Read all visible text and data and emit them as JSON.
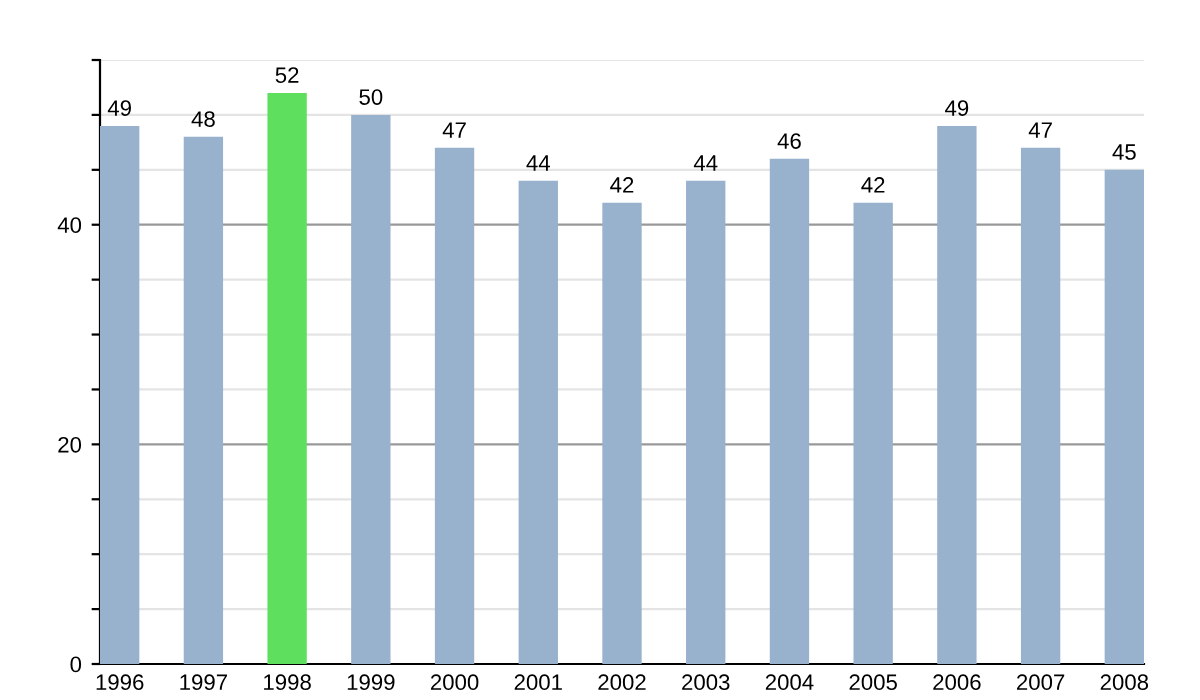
{
  "chart_data": {
    "type": "bar",
    "categories": [
      "1996",
      "1997",
      "1998",
      "1999",
      "2000",
      "2001",
      "2002",
      "2003",
      "2004",
      "2005",
      "2006",
      "2007",
      "2008"
    ],
    "values": [
      49,
      48,
      52,
      50,
      47,
      44,
      42,
      44,
      46,
      42,
      49,
      47,
      45
    ],
    "colors": [
      "#98b1cc",
      "#98b1cc",
      "#5ee05e",
      "#98b1cc",
      "#98b1cc",
      "#98b1cc",
      "#98b1cc",
      "#98b1cc",
      "#98b1cc",
      "#98b1cc",
      "#98b1cc",
      "#98b1cc",
      "#98b1cc"
    ],
    "ylim": [
      0,
      55
    ],
    "yticks": [
      0,
      {
        "value": 5,
        "label": null
      },
      {
        "value": 10,
        "label": null
      },
      {
        "value": 15,
        "label": null
      },
      20,
      {
        "value": 25,
        "label": null
      },
      {
        "value": 30,
        "label": null
      },
      {
        "value": 35,
        "label": null
      },
      40,
      {
        "value": 45,
        "label": null
      },
      {
        "value": 50,
        "label": null
      },
      {
        "value": 55,
        "label": null
      }
    ],
    "grid": "y",
    "data_labels": true,
    "legend": false
  }
}
